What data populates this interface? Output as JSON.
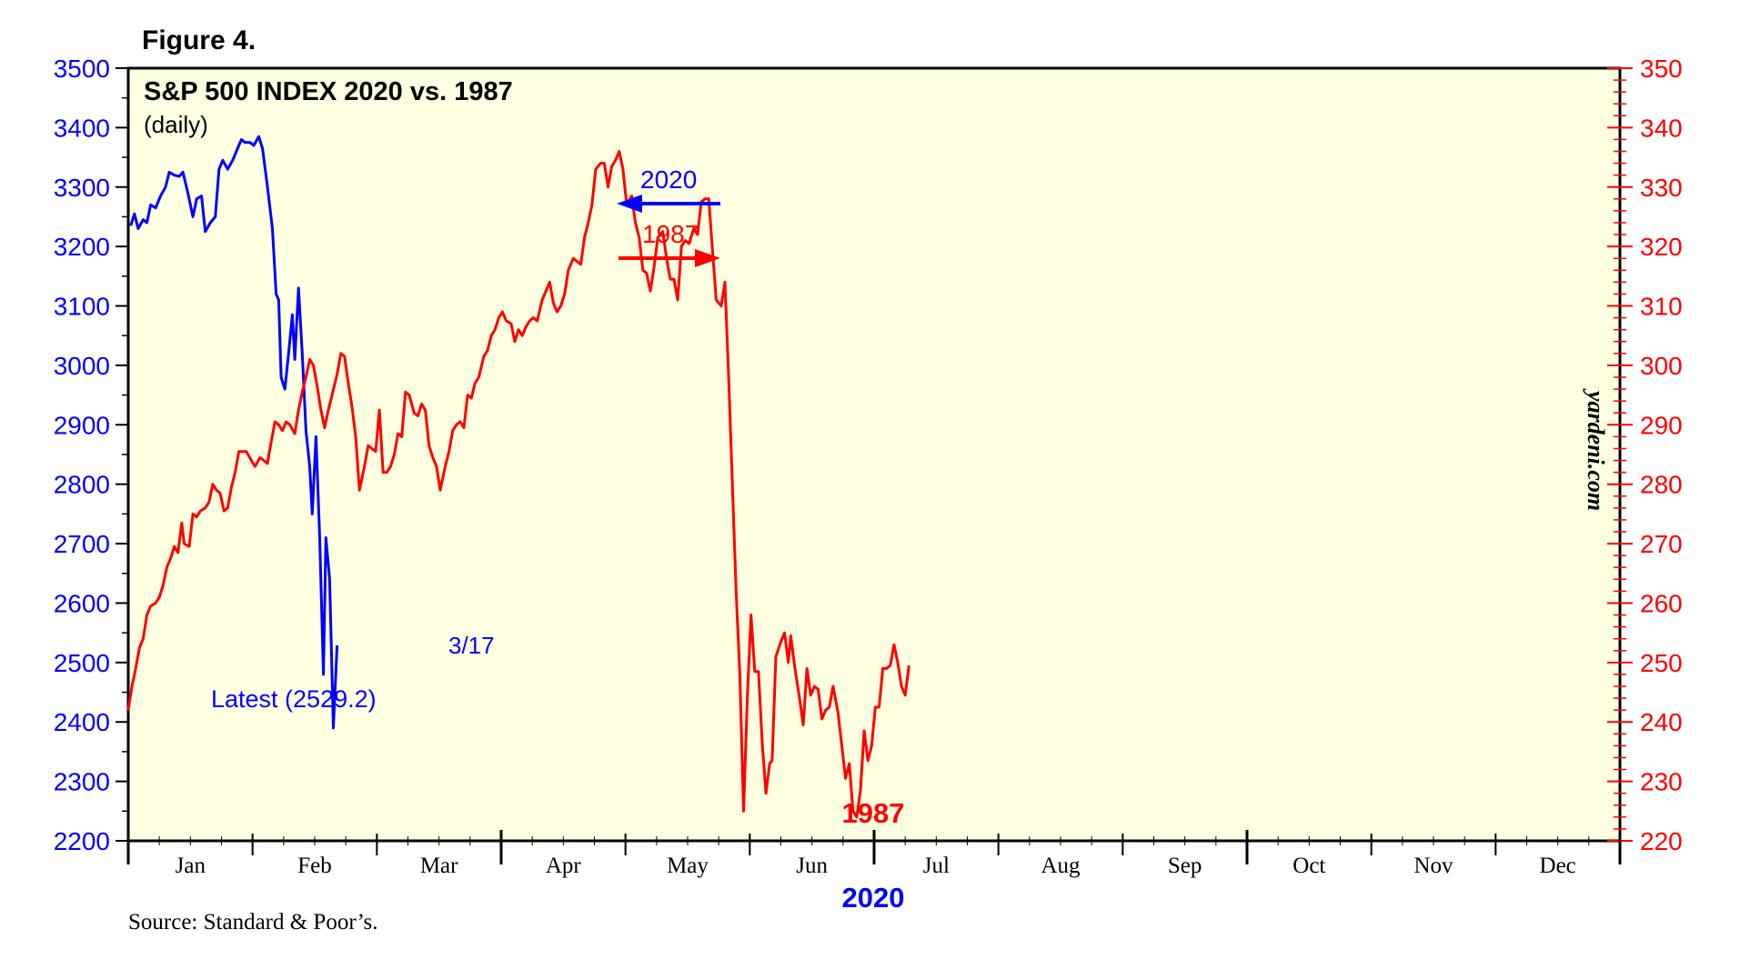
{
  "figure_label": "Figure 4.",
  "source": "Source: Standard & Poor’s.",
  "watermark": "yardeni.com",
  "colors": {
    "plot_background": "#ffffe1",
    "series_2020": "#0000ff",
    "series_1987": "#ff0000",
    "axis": "#000000"
  },
  "chart_data": {
    "type": "line",
    "title": "S&P 500 INDEX 2020 vs. 1987",
    "subtitle": "(daily)",
    "x_categories": [
      "Jan",
      "Feb",
      "Mar",
      "Apr",
      "May",
      "Jun",
      "Jul",
      "Aug",
      "Sep",
      "Oct",
      "Nov",
      "Dec"
    ],
    "xlabel_top": "1987",
    "xlabel_bottom": "2020",
    "left_axis": {
      "ylim": [
        2200,
        3500
      ],
      "ticks": [
        "2200",
        "2300",
        "2400",
        "2500",
        "2600",
        "2700",
        "2800",
        "2900",
        "3000",
        "3100",
        "3200",
        "3300",
        "3400",
        "3500"
      ]
    },
    "right_axis": {
      "ylim": [
        220,
        350
      ],
      "ticks": [
        "220",
        "230",
        "240",
        "250",
        "260",
        "270",
        "280",
        "290",
        "300",
        "310",
        "320",
        "330",
        "340",
        "350"
      ]
    },
    "legend": {
      "placement": "top-center",
      "items": [
        {
          "label": "2020",
          "arrow": "left"
        },
        {
          "label": "1987",
          "arrow": "right"
        }
      ]
    },
    "annotations": {
      "latest_date": "3/17",
      "latest_value": "Latest (2529.2)"
    },
    "series": [
      {
        "name": "2020",
        "axis": "left",
        "points": [
          [
            0.02,
            3235
          ],
          [
            0.05,
            3255
          ],
          [
            0.08,
            3230
          ],
          [
            0.12,
            3245
          ],
          [
            0.15,
            3240
          ],
          [
            0.18,
            3270
          ],
          [
            0.22,
            3265
          ],
          [
            0.26,
            3285
          ],
          [
            0.3,
            3300
          ],
          [
            0.33,
            3325
          ],
          [
            0.37,
            3320
          ],
          [
            0.41,
            3318
          ],
          [
            0.44,
            3325
          ],
          [
            0.48,
            3290
          ],
          [
            0.52,
            3250
          ],
          [
            0.55,
            3280
          ],
          [
            0.59,
            3285
          ],
          [
            0.62,
            3225
          ],
          [
            0.66,
            3240
          ],
          [
            0.7,
            3250
          ],
          [
            0.73,
            3330
          ],
          [
            0.76,
            3345
          ],
          [
            0.8,
            3330
          ],
          [
            0.84,
            3345
          ],
          [
            0.87,
            3360
          ],
          [
            0.91,
            3380
          ],
          [
            0.94,
            3375
          ],
          [
            0.98,
            3375
          ],
          [
            1.01,
            3370
          ],
          [
            1.05,
            3385
          ],
          [
            1.08,
            3365
          ],
          [
            1.12,
            3300
          ],
          [
            1.16,
            3230
          ],
          [
            1.19,
            3120
          ],
          [
            1.21,
            3110
          ],
          [
            1.23,
            2980
          ],
          [
            1.26,
            2960
          ],
          [
            1.29,
            3020
          ],
          [
            1.32,
            3085
          ],
          [
            1.34,
            3010
          ],
          [
            1.37,
            3130
          ],
          [
            1.4,
            3020
          ],
          [
            1.43,
            2890
          ],
          [
            1.46,
            2830
          ],
          [
            1.48,
            2750
          ],
          [
            1.51,
            2880
          ],
          [
            1.54,
            2710
          ],
          [
            1.57,
            2480
          ],
          [
            1.59,
            2710
          ],
          [
            1.62,
            2640
          ],
          [
            1.65,
            2390
          ],
          [
            1.68,
            2529
          ]
        ]
      },
      {
        "name": "1987",
        "axis": "right",
        "points": [
          [
            0.0,
            242.0
          ],
          [
            0.03,
            246.0
          ],
          [
            0.06,
            249.0
          ],
          [
            0.09,
            252.5
          ],
          [
            0.12,
            254.0
          ],
          [
            0.15,
            258.0
          ],
          [
            0.18,
            259.5
          ],
          [
            0.22,
            260.0
          ],
          [
            0.25,
            261.0
          ],
          [
            0.28,
            263.0
          ],
          [
            0.31,
            266.0
          ],
          [
            0.34,
            267.5
          ],
          [
            0.37,
            269.5
          ],
          [
            0.4,
            268.5
          ],
          [
            0.43,
            273.5
          ],
          [
            0.45,
            270.0
          ],
          [
            0.49,
            269.5
          ],
          [
            0.52,
            275.0
          ],
          [
            0.55,
            274.5
          ],
          [
            0.58,
            275.5
          ],
          [
            0.62,
            276.0
          ],
          [
            0.65,
            277.0
          ],
          [
            0.68,
            280.0
          ],
          [
            0.71,
            279.0
          ],
          [
            0.74,
            278.5
          ],
          [
            0.77,
            275.5
          ],
          [
            0.8,
            276.0
          ],
          [
            0.83,
            279.5
          ],
          [
            0.86,
            282.0
          ],
          [
            0.89,
            285.5
          ],
          [
            0.92,
            285.5
          ],
          [
            0.95,
            285.5
          ],
          [
            0.99,
            284.0
          ],
          [
            1.02,
            283.0
          ],
          [
            1.06,
            284.5
          ],
          [
            1.09,
            284.0
          ],
          [
            1.12,
            283.5
          ],
          [
            1.14,
            286.0
          ],
          [
            1.18,
            290.5
          ],
          [
            1.21,
            290.0
          ],
          [
            1.24,
            289.0
          ],
          [
            1.27,
            290.5
          ],
          [
            1.3,
            290.0
          ],
          [
            1.34,
            288.5
          ],
          [
            1.37,
            292.5
          ],
          [
            1.4,
            295.5
          ],
          [
            1.43,
            298.0
          ],
          [
            1.46,
            301.0
          ],
          [
            1.49,
            300.0
          ],
          [
            1.52,
            296.5
          ],
          [
            1.55,
            292.5
          ],
          [
            1.58,
            289.5
          ],
          [
            1.61,
            292.5
          ],
          [
            1.64,
            295.0
          ],
          [
            1.68,
            298.5
          ],
          [
            1.71,
            302.0
          ],
          [
            1.74,
            301.5
          ],
          [
            1.77,
            297.0
          ],
          [
            1.8,
            293.0
          ],
          [
            1.83,
            288.0
          ],
          [
            1.86,
            279.0
          ],
          [
            1.9,
            283.0
          ],
          [
            1.93,
            286.5
          ],
          [
            1.96,
            286.0
          ],
          [
            1.99,
            285.5
          ],
          [
            2.02,
            292.5
          ],
          [
            2.05,
            282.0
          ],
          [
            2.08,
            282.0
          ],
          [
            2.11,
            283.0
          ],
          [
            2.14,
            285.0
          ],
          [
            2.17,
            288.5
          ],
          [
            2.2,
            288.0
          ],
          [
            2.23,
            295.5
          ],
          [
            2.26,
            295.0
          ],
          [
            2.3,
            292.0
          ],
          [
            2.33,
            291.5
          ],
          [
            2.36,
            293.5
          ],
          [
            2.39,
            292.5
          ],
          [
            2.42,
            286.5
          ],
          [
            2.45,
            284.5
          ],
          [
            2.48,
            283.0
          ],
          [
            2.51,
            279.0
          ],
          [
            2.55,
            283.0
          ],
          [
            2.58,
            285.5
          ],
          [
            2.61,
            289.0
          ],
          [
            2.64,
            290.0
          ],
          [
            2.67,
            290.5
          ],
          [
            2.7,
            289.5
          ],
          [
            2.73,
            295.0
          ],
          [
            2.76,
            294.5
          ],
          [
            2.79,
            297.0
          ],
          [
            2.82,
            298.0
          ],
          [
            2.86,
            301.5
          ],
          [
            2.89,
            302.5
          ],
          [
            2.92,
            305.0
          ],
          [
            2.95,
            306.0
          ],
          [
            2.98,
            308.0
          ],
          [
            3.01,
            309.0
          ],
          [
            3.04,
            307.5
          ],
          [
            3.08,
            307.0
          ],
          [
            3.11,
            304.0
          ],
          [
            3.14,
            306.0
          ],
          [
            3.17,
            305.0
          ],
          [
            3.2,
            306.5
          ],
          [
            3.23,
            307.5
          ],
          [
            3.26,
            308.0
          ],
          [
            3.29,
            307.5
          ],
          [
            3.33,
            311.0
          ],
          [
            3.36,
            312.5
          ],
          [
            3.39,
            314.0
          ],
          [
            3.42,
            310.5
          ],
          [
            3.45,
            309.0
          ],
          [
            3.48,
            310.0
          ],
          [
            3.51,
            312.0
          ],
          [
            3.54,
            316.0
          ],
          [
            3.58,
            318.0
          ],
          [
            3.61,
            317.5
          ],
          [
            3.64,
            317.0
          ],
          [
            3.67,
            321.5
          ],
          [
            3.7,
            324.0
          ],
          [
            3.73,
            327.0
          ],
          [
            3.76,
            333.0
          ],
          [
            3.8,
            334.0
          ],
          [
            3.83,
            334.0
          ],
          [
            3.86,
            330.0
          ],
          [
            3.89,
            333.5
          ],
          [
            3.92,
            334.5
          ],
          [
            3.95,
            336.0
          ],
          [
            3.98,
            333.0
          ],
          [
            4.01,
            327.0
          ],
          [
            4.05,
            328.5
          ],
          [
            4.08,
            324.0
          ],
          [
            4.11,
            321.5
          ],
          [
            4.14,
            316.0
          ],
          [
            4.17,
            315.5
          ],
          [
            4.2,
            312.5
          ],
          [
            4.23,
            316.5
          ],
          [
            4.26,
            321.5
          ],
          [
            4.3,
            322.5
          ],
          [
            4.33,
            318.0
          ],
          [
            4.36,
            314.5
          ],
          [
            4.39,
            314.5
          ],
          [
            4.42,
            311.0
          ],
          [
            4.45,
            320.0
          ],
          [
            4.48,
            321.0
          ],
          [
            4.51,
            320.5
          ],
          [
            4.55,
            323.0
          ],
          [
            4.58,
            322.0
          ],
          [
            4.61,
            327.5
          ],
          [
            4.64,
            328.0
          ],
          [
            4.67,
            328.0
          ],
          [
            4.7,
            319.5
          ],
          [
            4.73,
            311.0
          ],
          [
            4.77,
            310.0
          ],
          [
            4.8,
            314.0
          ],
          [
            4.83,
            298.0
          ],
          [
            4.86,
            280.0
          ],
          [
            4.89,
            262.0
          ],
          [
            4.92,
            248.0
          ],
          [
            4.95,
            225.0
          ],
          [
            4.98,
            244.0
          ],
          [
            5.01,
            258.0
          ],
          [
            5.04,
            248.5
          ],
          [
            5.07,
            248.5
          ],
          [
            5.1,
            236.5
          ],
          [
            5.13,
            228.0
          ],
          [
            5.16,
            233.0
          ],
          [
            5.18,
            233.5
          ],
          [
            5.21,
            251.0
          ],
          [
            5.25,
            253.5
          ],
          [
            5.28,
            255.0
          ],
          [
            5.31,
            250.0
          ],
          [
            5.33,
            254.5
          ],
          [
            5.36,
            249.5
          ],
          [
            5.4,
            244.0
          ],
          [
            5.43,
            239.5
          ],
          [
            5.46,
            249.0
          ],
          [
            5.49,
            244.5
          ],
          [
            5.52,
            246.0
          ],
          [
            5.55,
            245.5
          ],
          [
            5.58,
            240.5
          ],
          [
            5.61,
            242.0
          ],
          [
            5.64,
            242.5
          ],
          [
            5.67,
            246.0
          ],
          [
            5.71,
            241.5
          ],
          [
            5.74,
            236.0
          ],
          [
            5.77,
            230.5
          ],
          [
            5.8,
            233.0
          ],
          [
            5.83,
            225.0
          ],
          [
            5.86,
            224.0
          ],
          [
            5.89,
            228.5
          ],
          [
            5.92,
            238.5
          ],
          [
            5.95,
            233.5
          ],
          [
            5.98,
            236.0
          ],
          [
            6.01,
            242.5
          ],
          [
            6.04,
            242.5
          ],
          [
            6.07,
            249.0
          ],
          [
            6.1,
            249.0
          ],
          [
            6.13,
            249.5
          ],
          [
            6.16,
            253.0
          ],
          [
            6.19,
            250.0
          ],
          [
            6.22,
            246.0
          ],
          [
            6.25,
            244.5
          ],
          [
            6.28,
            249.5
          ]
        ]
      }
    ]
  }
}
